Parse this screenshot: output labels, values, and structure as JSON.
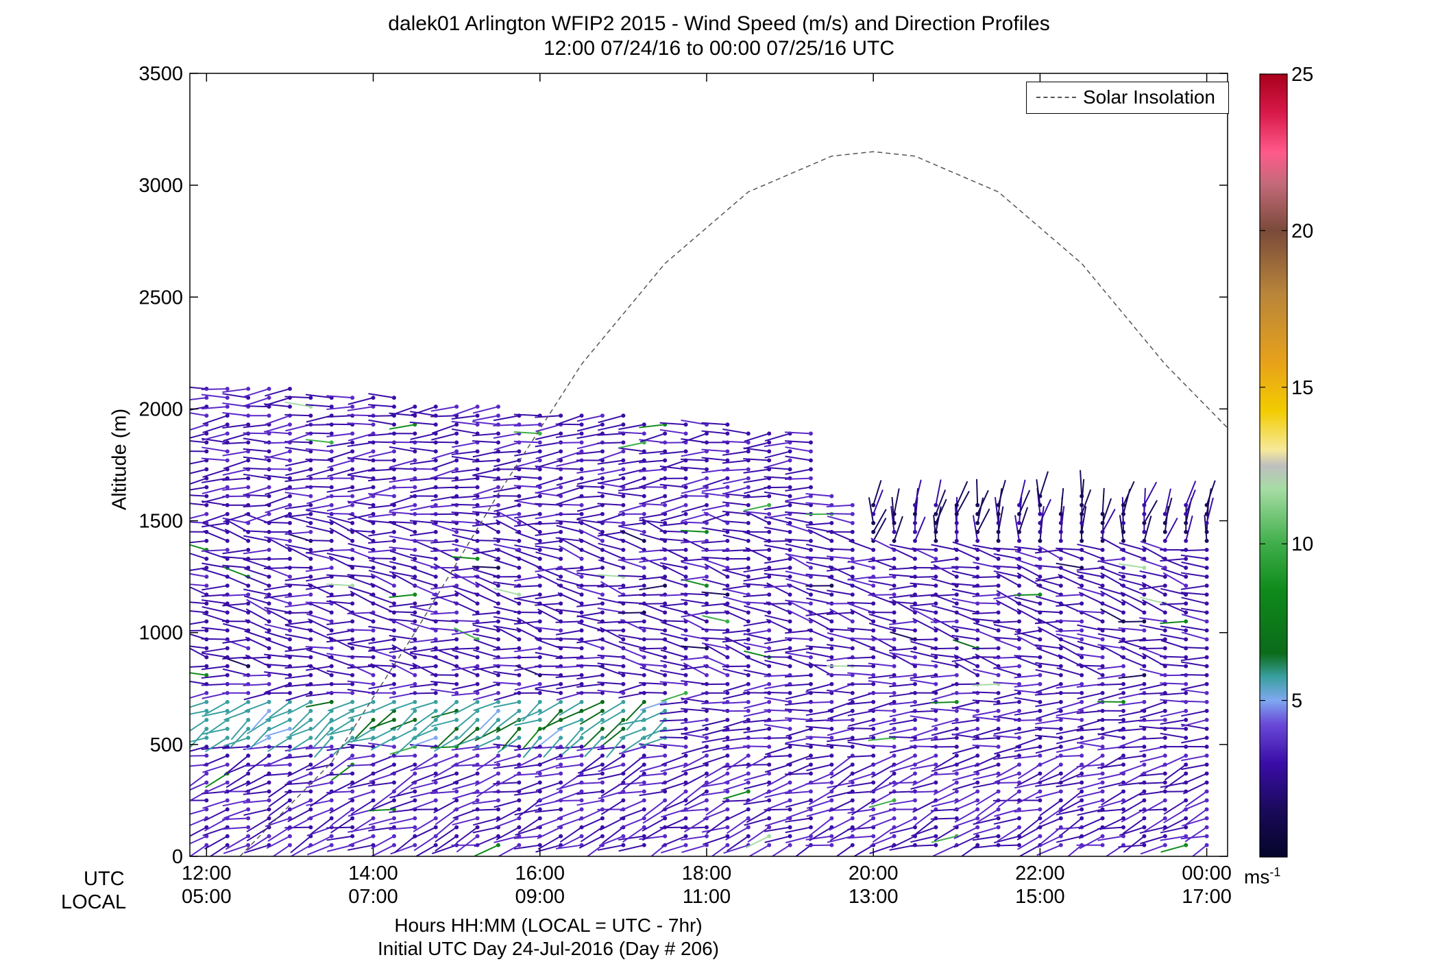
{
  "title": "dalek01 Arlington WFIP2 2015 - Wind Speed (m/s) and Direction Profiles",
  "subtitle": "12:00 07/24/16 to 00:00 07/25/16  UTC",
  "xlabel": "Hours HH:MM  (LOCAL = UTC - 7hr)",
  "initial_day": "Initial UTC Day 24-Jul-2016 (Day # 206)",
  "utc_row_label": "UTC",
  "local_row_label": "LOCAL",
  "ylabel": "Altitude (m)",
  "legend": {
    "solar_label": "Solar Insolation"
  },
  "colorbar": {
    "unit_base": "ms",
    "unit_exp": "-1",
    "ticks": [
      "5",
      "10",
      "15",
      "20",
      "25"
    ],
    "range": [
      0,
      25
    ]
  },
  "colors": {
    "axis": "#000000",
    "solar_line": "#555555",
    "colormap": [
      "#05052a",
      "#1a0a5a",
      "#3a0da8",
      "#5a28c8",
      "#7a66e0",
      "#7fa8f0",
      "#3aa0a0",
      "#0b6b1a",
      "#0f8a1a",
      "#3fae4a",
      "#a6dca4",
      "#bfbfbf",
      "#f7e99a",
      "#f2cc00",
      "#e8a21a",
      "#b8853a",
      "#8a6a4a",
      "#7a4a4a",
      "#c46a7a",
      "#ff5a8a",
      "#d81a4a",
      "#a8001a"
    ]
  },
  "chart_data": {
    "type": "wind-barb profile",
    "title": "dalek01 Arlington WFIP2 2015 - Wind Speed (m/s) and Direction Profiles",
    "xlim_hours": [
      11.8,
      24.25
    ],
    "ylim": [
      0,
      3500
    ],
    "yticks": [
      "0",
      "500",
      "1000",
      "1500",
      "2000",
      "2500",
      "3000",
      "3500"
    ],
    "yticks_values": [
      0,
      500,
      1000,
      1500,
      2000,
      2500,
      3000,
      3500
    ],
    "xticks_utc": [
      "12:00",
      "14:00",
      "16:00",
      "18:00",
      "20:00",
      "22:00",
      "00:00"
    ],
    "xticks_local": [
      "05:00",
      "07:00",
      "09:00",
      "11:00",
      "13:00",
      "15:00",
      "17:00"
    ],
    "xticks_hours": [
      12,
      14,
      16,
      18,
      20,
      22,
      24
    ],
    "profile_times_hours": [
      12.0,
      12.25,
      12.5,
      12.75,
      13.0,
      13.25,
      13.5,
      13.75,
      14.0,
      14.25,
      14.5,
      14.75,
      15.0,
      15.25,
      15.5,
      15.75,
      16.0,
      16.25,
      16.5,
      16.75,
      17.0,
      17.25,
      17.5,
      17.75,
      18.0,
      18.25,
      18.5,
      18.75,
      19.0,
      19.25,
      19.5,
      19.75,
      20.0,
      20.25,
      20.5,
      20.75,
      21.0,
      21.25,
      21.5,
      21.75,
      22.0,
      22.25,
      22.5,
      22.75,
      23.0,
      23.25,
      23.5,
      23.75,
      24.0
    ],
    "range_gates_m": {
      "start": 50,
      "step": 40,
      "max_top_early": 2120,
      "max_top_late": 1560
    },
    "wind_speed_regimes": [
      {
        "hours": [
          12.0,
          17.5
        ],
        "alt_m": [
          500,
          700
        ],
        "speed_ms": 7.5,
        "dir_deg": 240
      },
      {
        "hours": [
          12.0,
          12.9
        ],
        "alt_m": [
          0,
          160
        ],
        "speed_ms": 7.0,
        "dir_deg": 260
      },
      {
        "hours": [
          12.0,
          24.0
        ],
        "alt_m": [
          0,
          450
        ],
        "speed_ms": 3.5,
        "dir_deg": 250
      },
      {
        "hours": [
          12.0,
          24.0
        ],
        "alt_m": [
          800,
          1500
        ],
        "speed_ms": 3.0,
        "dir_deg": 280
      },
      {
        "hours": [
          20.0,
          24.0
        ],
        "alt_m": [
          1400,
          1700
        ],
        "speed_ms": 2.0,
        "dir_deg": 10
      }
    ],
    "solar_insolation": {
      "style": "dashed",
      "peak_hour": 20.0,
      "peak_alt": 3150,
      "points_hours": [
        12.4,
        13.5,
        14.5,
        15.5,
        16.5,
        17.5,
        18.5,
        19.5,
        20.0,
        20.5,
        21.5,
        22.5,
        23.5,
        24.5
      ],
      "points_alt": [
        0,
        420,
        1000,
        1620,
        2200,
        2650,
        2970,
        3130,
        3150,
        3130,
        2970,
        2650,
        2200,
        1820
      ]
    }
  }
}
